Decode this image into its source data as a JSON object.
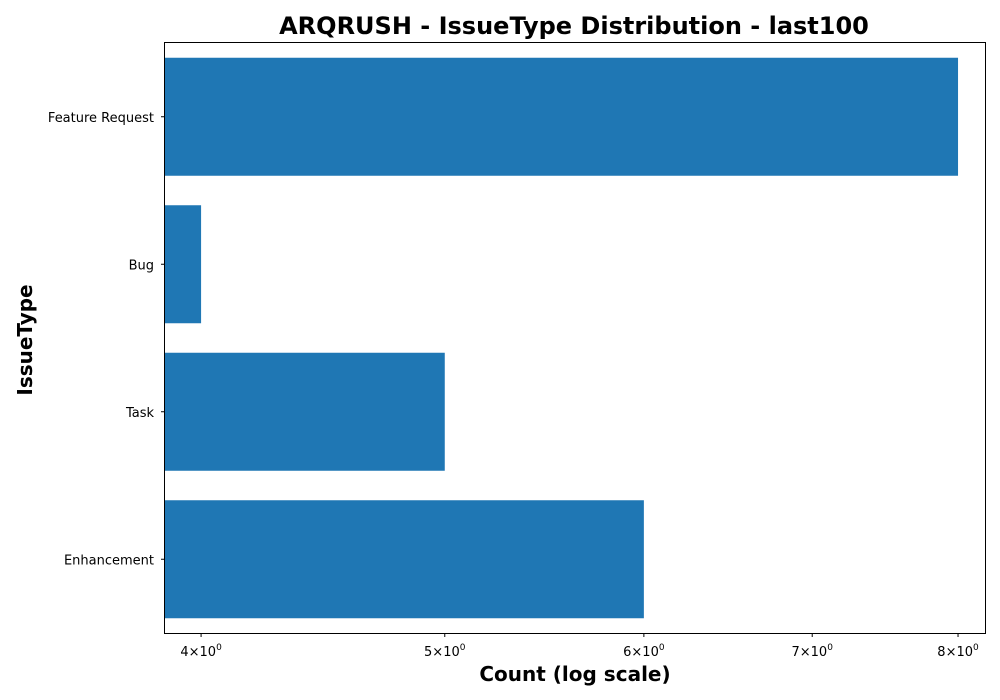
{
  "chart_data": {
    "type": "bar",
    "orientation": "horizontal",
    "title": "ARQRUSH - IssueType Distribution - last100",
    "xlabel": "Count (log scale)",
    "ylabel": "IssueType",
    "x_scale": "log",
    "xlim": [
      3.87,
      8.2
    ],
    "categories": [
      "Feature Request",
      "Bug",
      "Task",
      "Enhancement"
    ],
    "values": [
      8,
      4,
      5,
      6
    ],
    "x_ticks": [
      {
        "value": 4,
        "mantissa": "4",
        "base": "10",
        "exponent": "0"
      },
      {
        "value": 5,
        "mantissa": "5",
        "base": "10",
        "exponent": "0"
      },
      {
        "value": 6,
        "mantissa": "6",
        "base": "10",
        "exponent": "0"
      },
      {
        "value": 7,
        "mantissa": "7",
        "base": "10",
        "exponent": "0"
      },
      {
        "value": 8,
        "mantissa": "8",
        "base": "10",
        "exponent": "0"
      }
    ],
    "times_symbol": "×",
    "bar_color": "#1f77b4",
    "grid": false,
    "legend": "none"
  }
}
